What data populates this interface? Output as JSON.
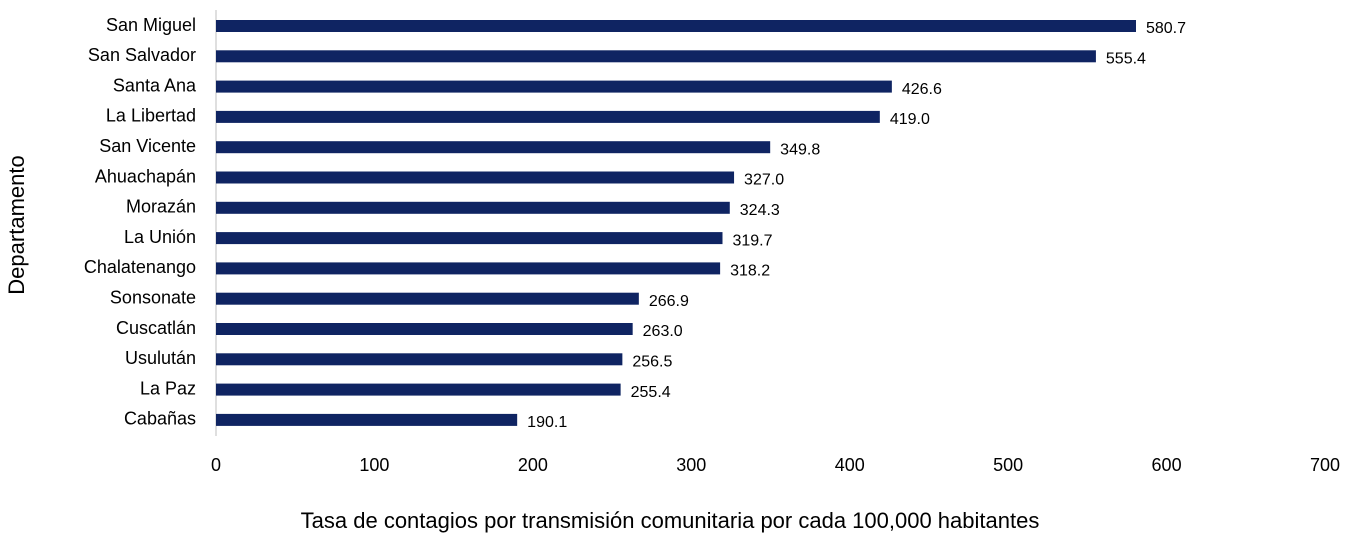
{
  "chart_data": {
    "type": "bar",
    "orientation": "horizontal",
    "x_label": "Tasa de contagios por transmisión comunitaria por cada 100,000 habitantes",
    "y_label": "Departamento",
    "categories": [
      "San Miguel",
      "San Salvador",
      "Santa Ana",
      "La Libertad",
      "San Vicente",
      "Ahuachapán",
      "Morazán",
      "La Unión",
      "Chalatenango",
      "Sonsonate",
      "Cuscatlán",
      "Usulután",
      "La Paz",
      "Cabañas"
    ],
    "values": [
      580.7,
      555.4,
      426.6,
      419.0,
      349.8,
      327.0,
      324.3,
      319.7,
      318.2,
      266.9,
      263.0,
      256.5,
      255.4,
      190.1
    ],
    "value_labels": [
      "580.7",
      "555.4",
      "426.6",
      "419.0",
      "349.8",
      "327.0",
      "324.3",
      "319.7",
      "318.2",
      "266.9",
      "263.0",
      "256.5",
      "255.4",
      "190.1"
    ],
    "color": "#0f2462",
    "xlim": [
      0,
      700
    ],
    "xticks": [
      0,
      100,
      200,
      300,
      400,
      500,
      600,
      700
    ],
    "grid": false
  }
}
